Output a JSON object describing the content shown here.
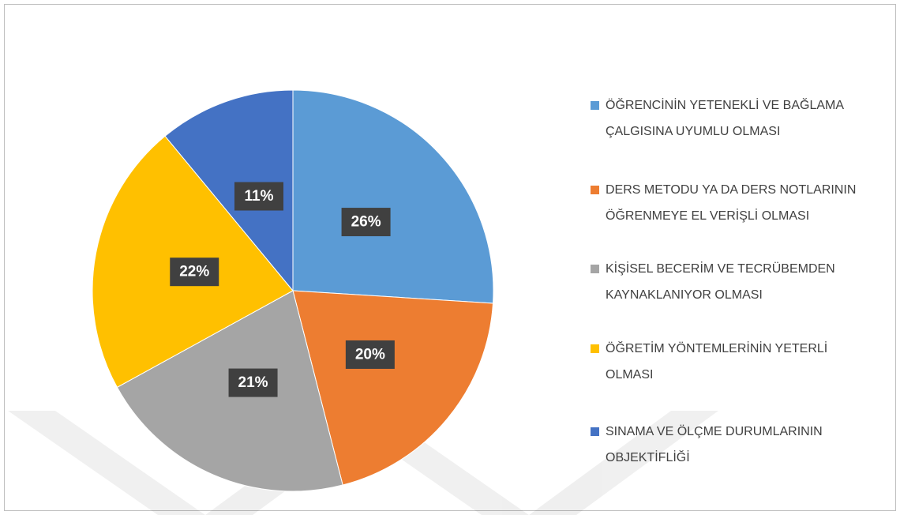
{
  "chart_data": {
    "type": "pie",
    "categories": [
      "ÖĞRENCİNİN YETENEKLİ VE BAĞLAMA ÇALGISINA UYUMLU OLMASI",
      "DERS METODU YA DA DERS NOTLARININ ÖĞRENMEYE EL VERİŞLİ OLMASI",
      "KİŞİSEL BECERİM VE TECRÜBEMDEN KAYNAKLANIYOR OLMASI",
      "ÖĞRETİM YÖNTEMLERİNİN YETERLİ OLMASI",
      "SINAMA VE ÖLÇME DURUMLARININ OBJEKTİFLİĞİ"
    ],
    "values": [
      26,
      20,
      21,
      22,
      11
    ],
    "value_labels": [
      "26%",
      "20%",
      "21%",
      "22%",
      "11%"
    ],
    "colors": [
      "#5b9bd5",
      "#ed7d31",
      "#a5a5a5",
      "#ffc000",
      "#4472c4"
    ],
    "legend": "right"
  }
}
